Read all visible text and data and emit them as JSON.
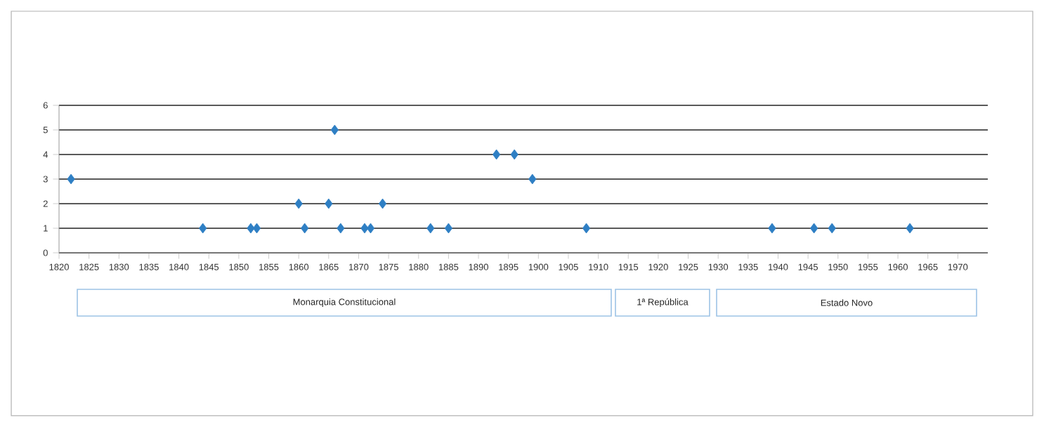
{
  "chart_data": {
    "type": "scatter",
    "marker": "diamond",
    "grid": "y",
    "x": [
      1822,
      1844,
      1852,
      1853,
      1860,
      1861,
      1865,
      1866,
      1867,
      1871,
      1872,
      1874,
      1882,
      1885,
      1893,
      1896,
      1899,
      1908,
      1939,
      1946,
      1949,
      1962
    ],
    "series": [
      {
        "color": "#2e7fc4",
        "values": [
          3,
          1,
          1,
          1,
          2,
          1,
          2,
          5,
          1,
          1,
          1,
          2,
          1,
          1,
          4,
          4,
          3,
          1,
          1,
          1,
          1,
          1
        ]
      }
    ],
    "xlim": [
      1820,
      1975
    ],
    "xticks": [
      1820,
      1825,
      1830,
      1835,
      1840,
      1845,
      1850,
      1855,
      1860,
      1865,
      1870,
      1875,
      1880,
      1885,
      1890,
      1895,
      1900,
      1905,
      1910,
      1915,
      1920,
      1925,
      1930,
      1935,
      1940,
      1945,
      1950,
      1955,
      1960,
      1965,
      1970
    ],
    "ylim": [
      0,
      6
    ],
    "yticks": [
      0,
      1,
      2,
      3,
      4,
      5,
      6
    ],
    "annotations": [
      "Monarquia Constitucional",
      "1ª República",
      "Estado Novo"
    ]
  }
}
